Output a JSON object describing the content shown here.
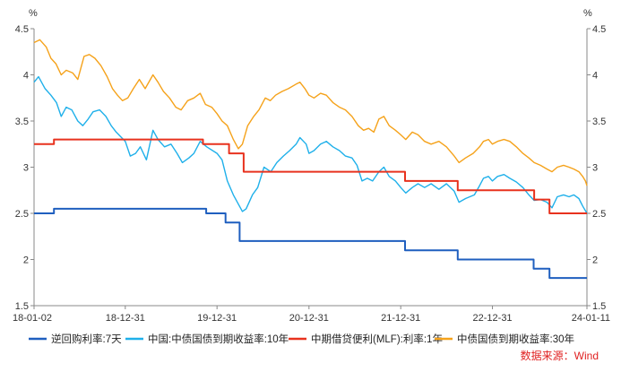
{
  "chart_data": {
    "type": "line",
    "y_unit": "%",
    "ylim": [
      1.5,
      4.5
    ],
    "yticks": [
      "4.5",
      "4",
      "3.5",
      "3",
      "2.5",
      "2",
      "1.5"
    ],
    "ytick_values": [
      4.5,
      4,
      3.5,
      3,
      2.5,
      2,
      1.5
    ],
    "xlim": [
      "2018-01-02",
      "2024-01-11"
    ],
    "xticks": [
      {
        "label": "18-01-02",
        "date": "2018-01-02"
      },
      {
        "label": "18-12-31",
        "date": "2018-12-31"
      },
      {
        "label": "19-12-31",
        "date": "2019-12-31"
      },
      {
        "label": "20-12-31",
        "date": "2020-12-31"
      },
      {
        "label": "21-12-31",
        "date": "2021-12-31"
      },
      {
        "label": "22-12-31",
        "date": "2022-12-31"
      },
      {
        "label": "24-01-11",
        "date": "2024-01-11"
      }
    ],
    "grid": false,
    "legend_position": "bottom",
    "source": "数据来源：Wind",
    "series": [
      {
        "name": "逆回购利率:7天",
        "color": "#1f5fbf",
        "step": true,
        "points": [
          [
            "2018-01-02",
            2.5
          ],
          [
            "2018-03-22",
            2.55
          ],
          [
            "2019-11-18",
            2.5
          ],
          [
            "2020-02-03",
            2.4
          ],
          [
            "2020-03-30",
            2.2
          ],
          [
            "2022-01-17",
            2.1
          ],
          [
            "2022-08-15",
            2.0
          ],
          [
            "2023-06-13",
            1.9
          ],
          [
            "2023-08-15",
            1.8
          ],
          [
            "2024-01-11",
            1.8
          ]
        ]
      },
      {
        "name": "中国:中债国债到期收益率:10年",
        "color": "#1fb0ea",
        "step": false,
        "points": [
          [
            "2018-01-02",
            3.92
          ],
          [
            "2018-01-20",
            3.98
          ],
          [
            "2018-02-15",
            3.85
          ],
          [
            "2018-03-10",
            3.78
          ],
          [
            "2018-04-01",
            3.7
          ],
          [
            "2018-04-20",
            3.55
          ],
          [
            "2018-05-10",
            3.65
          ],
          [
            "2018-06-01",
            3.62
          ],
          [
            "2018-06-25",
            3.5
          ],
          [
            "2018-07-15",
            3.45
          ],
          [
            "2018-08-05",
            3.52
          ],
          [
            "2018-08-25",
            3.6
          ],
          [
            "2018-09-20",
            3.62
          ],
          [
            "2018-10-15",
            3.55
          ],
          [
            "2018-11-05",
            3.45
          ],
          [
            "2018-11-25",
            3.38
          ],
          [
            "2018-12-31",
            3.28
          ],
          [
            "2019-01-20",
            3.12
          ],
          [
            "2019-02-10",
            3.15
          ],
          [
            "2019-03-01",
            3.22
          ],
          [
            "2019-03-25",
            3.08
          ],
          [
            "2019-04-20",
            3.4
          ],
          [
            "2019-05-10",
            3.3
          ],
          [
            "2019-06-05",
            3.22
          ],
          [
            "2019-07-01",
            3.25
          ],
          [
            "2019-07-25",
            3.15
          ],
          [
            "2019-08-15",
            3.05
          ],
          [
            "2019-09-10",
            3.1
          ],
          [
            "2019-09-30",
            3.15
          ],
          [
            "2019-10-25",
            3.28
          ],
          [
            "2019-11-20",
            3.22
          ],
          [
            "2019-12-31",
            3.15
          ],
          [
            "2020-01-20",
            3.08
          ],
          [
            "2020-02-10",
            2.85
          ],
          [
            "2020-03-05",
            2.7
          ],
          [
            "2020-03-25",
            2.6
          ],
          [
            "2020-04-10",
            2.52
          ],
          [
            "2020-04-25",
            2.55
          ],
          [
            "2020-05-20",
            2.7
          ],
          [
            "2020-06-10",
            2.78
          ],
          [
            "2020-07-05",
            3.0
          ],
          [
            "2020-08-01",
            2.95
          ],
          [
            "2020-08-25",
            3.05
          ],
          [
            "2020-09-20",
            3.12
          ],
          [
            "2020-10-15",
            3.18
          ],
          [
            "2020-11-10",
            3.25
          ],
          [
            "2020-11-25",
            3.32
          ],
          [
            "2020-12-20",
            3.25
          ],
          [
            "2020-12-31",
            3.15
          ],
          [
            "2021-01-20",
            3.18
          ],
          [
            "2021-02-15",
            3.25
          ],
          [
            "2021-03-10",
            3.28
          ],
          [
            "2021-04-05",
            3.22
          ],
          [
            "2021-05-01",
            3.18
          ],
          [
            "2021-05-25",
            3.12
          ],
          [
            "2021-06-20",
            3.1
          ],
          [
            "2021-07-10",
            3.02
          ],
          [
            "2021-07-30",
            2.85
          ],
          [
            "2021-08-20",
            2.88
          ],
          [
            "2021-09-10",
            2.85
          ],
          [
            "2021-10-05",
            2.95
          ],
          [
            "2021-10-25",
            3.0
          ],
          [
            "2021-11-15",
            2.9
          ],
          [
            "2021-12-10",
            2.85
          ],
          [
            "2021-12-31",
            2.78
          ],
          [
            "2022-01-20",
            2.72
          ],
          [
            "2022-02-15",
            2.78
          ],
          [
            "2022-03-10",
            2.82
          ],
          [
            "2022-04-05",
            2.78
          ],
          [
            "2022-05-01",
            2.82
          ],
          [
            "2022-06-01",
            2.76
          ],
          [
            "2022-07-01",
            2.82
          ],
          [
            "2022-08-01",
            2.74
          ],
          [
            "2022-08-20",
            2.62
          ],
          [
            "2022-09-15",
            2.66
          ],
          [
            "2022-10-20",
            2.7
          ],
          [
            "2022-11-10",
            2.8
          ],
          [
            "2022-11-25",
            2.88
          ],
          [
            "2022-12-15",
            2.9
          ],
          [
            "2022-12-31",
            2.85
          ],
          [
            "2023-01-20",
            2.9
          ],
          [
            "2023-02-15",
            2.92
          ],
          [
            "2023-03-10",
            2.88
          ],
          [
            "2023-04-05",
            2.84
          ],
          [
            "2023-05-01",
            2.78
          ],
          [
            "2023-05-25",
            2.7
          ],
          [
            "2023-06-15",
            2.64
          ],
          [
            "2023-07-10",
            2.65
          ],
          [
            "2023-08-05",
            2.62
          ],
          [
            "2023-08-25",
            2.56
          ],
          [
            "2023-09-15",
            2.68
          ],
          [
            "2023-10-10",
            2.7
          ],
          [
            "2023-11-01",
            2.68
          ],
          [
            "2023-11-20",
            2.7
          ],
          [
            "2023-12-10",
            2.66
          ],
          [
            "2023-12-25",
            2.58
          ],
          [
            "2024-01-11",
            2.5
          ]
        ]
      },
      {
        "name": "中期借贷便利(MLF):利率:1年",
        "color": "#e8321e",
        "step": true,
        "points": [
          [
            "2018-01-02",
            3.25
          ],
          [
            "2018-03-22",
            3.3
          ],
          [
            "2019-11-05",
            3.25
          ],
          [
            "2020-02-17",
            3.15
          ],
          [
            "2020-04-15",
            2.95
          ],
          [
            "2022-01-17",
            2.85
          ],
          [
            "2022-08-15",
            2.75
          ],
          [
            "2023-06-15",
            2.65
          ],
          [
            "2023-08-15",
            2.5
          ],
          [
            "2024-01-11",
            2.5
          ]
        ]
      },
      {
        "name": "中债国债到期收益率:30年",
        "color": "#f5a21a",
        "step": false,
        "points": [
          [
            "2018-01-02",
            4.35
          ],
          [
            "2018-01-25",
            4.38
          ],
          [
            "2018-02-20",
            4.3
          ],
          [
            "2018-03-10",
            4.18
          ],
          [
            "2018-03-30",
            4.12
          ],
          [
            "2018-04-20",
            4.0
          ],
          [
            "2018-05-10",
            4.05
          ],
          [
            "2018-06-05",
            4.02
          ],
          [
            "2018-06-25",
            3.95
          ],
          [
            "2018-07-20",
            4.2
          ],
          [
            "2018-08-10",
            4.22
          ],
          [
            "2018-09-01",
            4.18
          ],
          [
            "2018-09-25",
            4.1
          ],
          [
            "2018-10-20",
            3.98
          ],
          [
            "2018-11-10",
            3.85
          ],
          [
            "2018-11-30",
            3.78
          ],
          [
            "2018-12-20",
            3.72
          ],
          [
            "2019-01-10",
            3.75
          ],
          [
            "2019-02-01",
            3.85
          ],
          [
            "2019-02-25",
            3.95
          ],
          [
            "2019-03-20",
            3.85
          ],
          [
            "2019-04-20",
            4.0
          ],
          [
            "2019-05-10",
            3.92
          ],
          [
            "2019-06-01",
            3.82
          ],
          [
            "2019-06-25",
            3.75
          ],
          [
            "2019-07-20",
            3.65
          ],
          [
            "2019-08-10",
            3.62
          ],
          [
            "2019-09-05",
            3.72
          ],
          [
            "2019-09-30",
            3.75
          ],
          [
            "2019-10-25",
            3.8
          ],
          [
            "2019-11-15",
            3.68
          ],
          [
            "2019-12-10",
            3.65
          ],
          [
            "2019-12-31",
            3.58
          ],
          [
            "2020-01-20",
            3.5
          ],
          [
            "2020-02-10",
            3.45
          ],
          [
            "2020-03-05",
            3.3
          ],
          [
            "2020-03-25",
            3.2
          ],
          [
            "2020-04-10",
            3.25
          ],
          [
            "2020-05-01",
            3.45
          ],
          [
            "2020-05-25",
            3.55
          ],
          [
            "2020-06-15",
            3.62
          ],
          [
            "2020-07-10",
            3.75
          ],
          [
            "2020-07-30",
            3.72
          ],
          [
            "2020-08-20",
            3.78
          ],
          [
            "2020-09-15",
            3.82
          ],
          [
            "2020-10-10",
            3.85
          ],
          [
            "2020-11-10",
            3.9
          ],
          [
            "2020-11-25",
            3.92
          ],
          [
            "2020-12-15",
            3.85
          ],
          [
            "2020-12-31",
            3.78
          ],
          [
            "2021-01-20",
            3.75
          ],
          [
            "2021-02-15",
            3.8
          ],
          [
            "2021-03-10",
            3.78
          ],
          [
            "2021-04-05",
            3.7
          ],
          [
            "2021-05-01",
            3.65
          ],
          [
            "2021-05-25",
            3.62
          ],
          [
            "2021-06-20",
            3.55
          ],
          [
            "2021-07-15",
            3.45
          ],
          [
            "2021-08-05",
            3.4
          ],
          [
            "2021-08-25",
            3.42
          ],
          [
            "2021-09-15",
            3.38
          ],
          [
            "2021-10-05",
            3.52
          ],
          [
            "2021-10-25",
            3.55
          ],
          [
            "2021-11-15",
            3.45
          ],
          [
            "2021-12-10",
            3.4
          ],
          [
            "2021-12-31",
            3.35
          ],
          [
            "2022-01-20",
            3.3
          ],
          [
            "2022-02-15",
            3.38
          ],
          [
            "2022-03-10",
            3.35
          ],
          [
            "2022-04-05",
            3.28
          ],
          [
            "2022-05-01",
            3.25
          ],
          [
            "2022-06-01",
            3.28
          ],
          [
            "2022-07-01",
            3.22
          ],
          [
            "2022-08-01",
            3.12
          ],
          [
            "2022-08-20",
            3.05
          ],
          [
            "2022-09-15",
            3.1
          ],
          [
            "2022-10-15",
            3.15
          ],
          [
            "2022-11-10",
            3.22
          ],
          [
            "2022-11-25",
            3.28
          ],
          [
            "2022-12-15",
            3.3
          ],
          [
            "2022-12-31",
            3.25
          ],
          [
            "2023-01-20",
            3.28
          ],
          [
            "2023-02-15",
            3.3
          ],
          [
            "2023-03-10",
            3.28
          ],
          [
            "2023-04-05",
            3.22
          ],
          [
            "2023-05-01",
            3.15
          ],
          [
            "2023-05-25",
            3.1
          ],
          [
            "2023-06-15",
            3.05
          ],
          [
            "2023-07-10",
            3.02
          ],
          [
            "2023-08-05",
            2.98
          ],
          [
            "2023-08-25",
            2.95
          ],
          [
            "2023-09-15",
            3.0
          ],
          [
            "2023-10-10",
            3.02
          ],
          [
            "2023-11-01",
            3.0
          ],
          [
            "2023-11-20",
            2.98
          ],
          [
            "2023-12-10",
            2.95
          ],
          [
            "2023-12-25",
            2.9
          ],
          [
            "2024-01-05",
            2.85
          ],
          [
            "2024-01-11",
            2.8
          ]
        ]
      }
    ]
  }
}
